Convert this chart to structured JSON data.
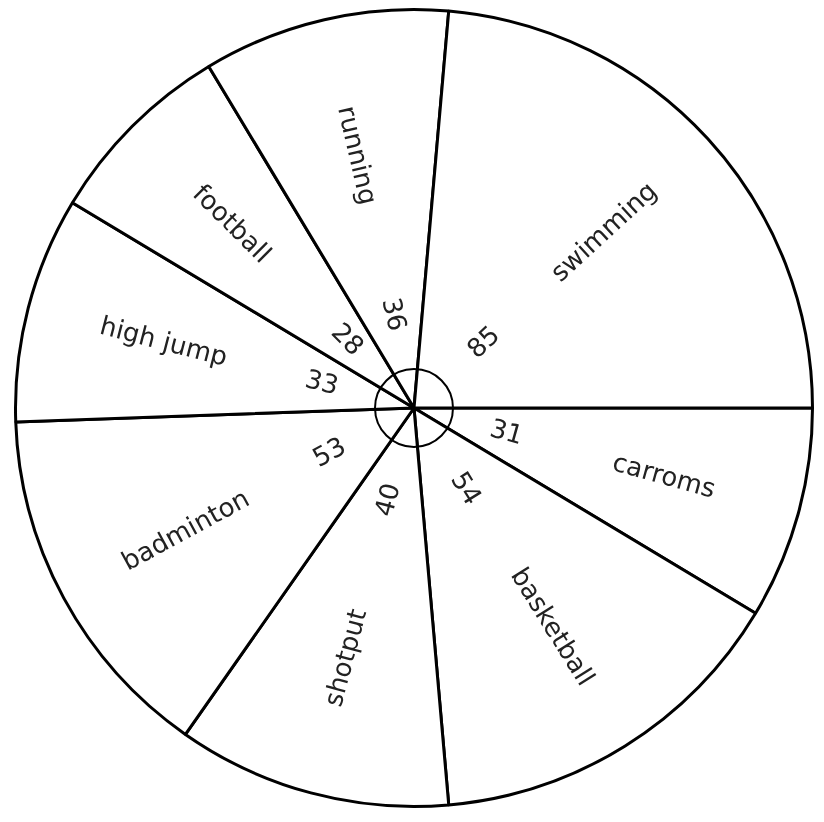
{
  "chart_data": {
    "type": "pie",
    "categories": [
      "carroms",
      "basketball",
      "shotput",
      "badminton",
      "high jump",
      "football",
      "running",
      "swimming"
    ],
    "values": [
      31,
      54,
      40,
      53,
      33,
      28,
      36,
      85
    ],
    "colors": [
      "#ffffff",
      "#ffffff",
      "#ffffff",
      "#ffffff",
      "#ffffff",
      "#ffffff",
      "#ffffff",
      "#ffffff"
    ],
    "data_labels": true
  }
}
